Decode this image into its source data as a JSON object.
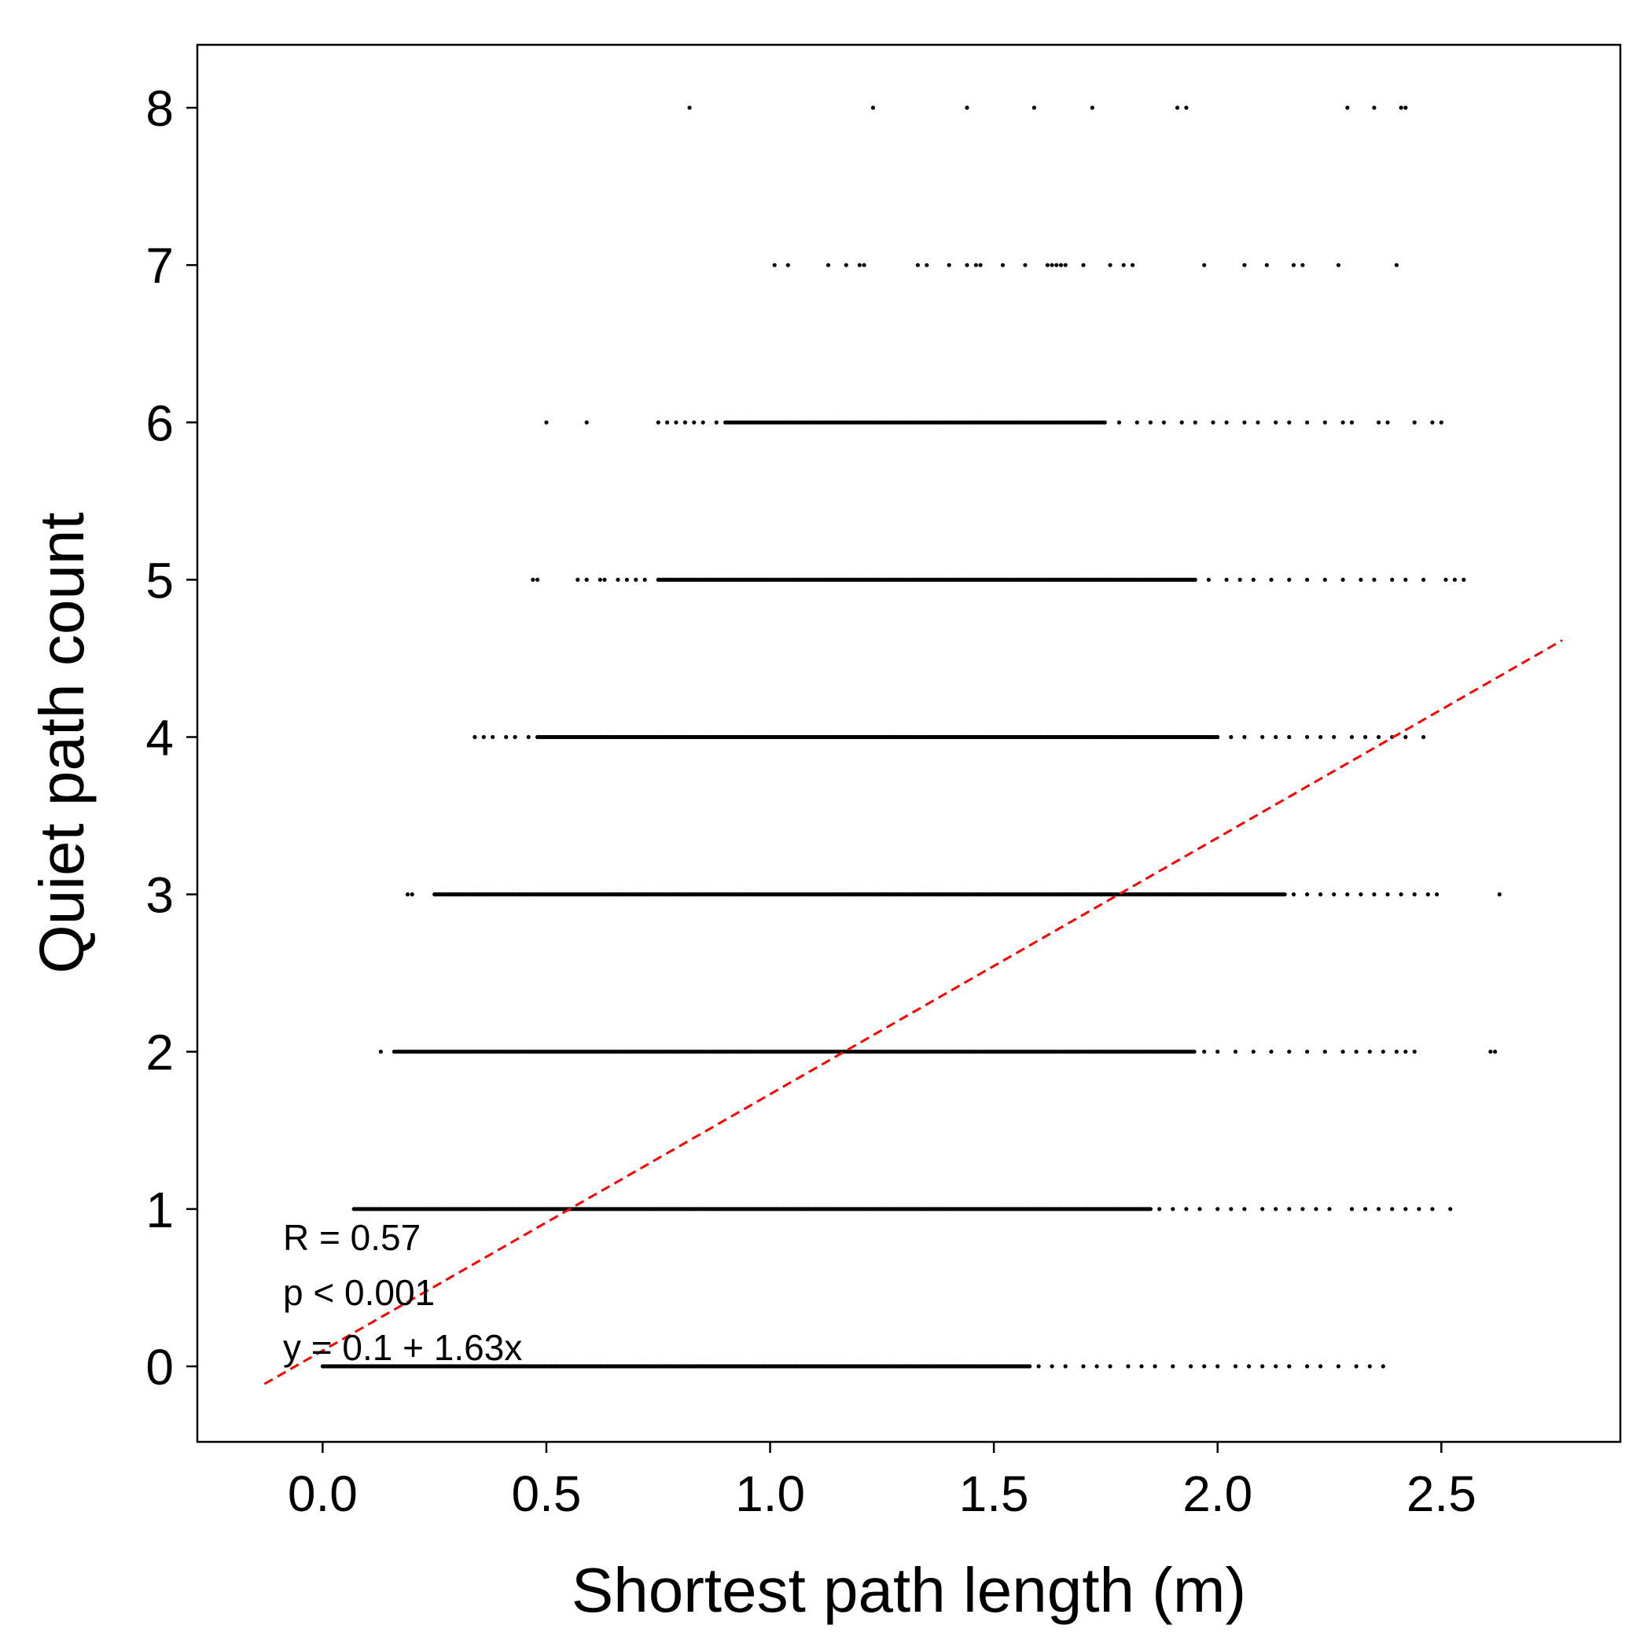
{
  "chart_data": {
    "type": "scatter",
    "title": "",
    "xlabel": "Shortest path length (m)",
    "ylabel": "Quiet path count",
    "xlim": [
      -0.28,
      2.9
    ],
    "ylim": [
      -0.48,
      8.4
    ],
    "grid": false,
    "xticks": [
      {
        "value": 0.0,
        "label": "0.0"
      },
      {
        "value": 0.5,
        "label": "0.5"
      },
      {
        "value": 1.0,
        "label": "1.0"
      },
      {
        "value": 1.5,
        "label": "1.5"
      },
      {
        "value": 2.0,
        "label": "2.0"
      },
      {
        "value": 2.5,
        "label": "2.5"
      }
    ],
    "yticks": [
      {
        "value": 0,
        "label": "0"
      },
      {
        "value": 1,
        "label": "1"
      },
      {
        "value": 2,
        "label": "2"
      },
      {
        "value": 3,
        "label": "3"
      },
      {
        "value": 4,
        "label": "4"
      },
      {
        "value": 5,
        "label": "5"
      },
      {
        "value": 6,
        "label": "6"
      },
      {
        "value": 7,
        "label": "7"
      },
      {
        "value": 8,
        "label": "8"
      }
    ],
    "series": [
      {
        "marker": "point",
        "color": "#000000",
        "rows": [
          {
            "y": 0,
            "dense": [
              0.0,
              1.58
            ],
            "x": [
              1.6,
              1.63,
              1.66,
              1.7,
              1.73,
              1.76,
              1.8,
              1.83,
              1.86,
              1.9,
              1.94,
              1.97,
              2.0,
              2.04,
              2.07,
              2.1,
              2.13,
              2.16,
              2.2,
              2.23,
              2.27,
              2.31,
              2.34,
              2.37
            ]
          },
          {
            "y": 1,
            "dense": [
              0.07,
              1.85
            ],
            "x": [
              1.87,
              1.9,
              1.93,
              1.96,
              2.0,
              2.03,
              2.06,
              2.1,
              2.13,
              2.16,
              2.19,
              2.22,
              2.25,
              2.3,
              2.33,
              2.36,
              2.39,
              2.42,
              2.45,
              2.48,
              2.52
            ]
          },
          {
            "y": 2,
            "dense": [
              0.16,
              1.95
            ],
            "x": [
              0.13,
              1.97,
              2.0,
              2.04,
              2.08,
              2.12,
              2.16,
              2.2,
              2.24,
              2.28,
              2.31,
              2.34,
              2.37,
              2.4,
              2.42,
              2.44,
              2.61,
              2.62
            ]
          },
          {
            "y": 3,
            "dense": [
              0.25,
              2.15
            ],
            "x": [
              0.19,
              0.2,
              2.17,
              2.2,
              2.23,
              2.26,
              2.29,
              2.32,
              2.35,
              2.38,
              2.41,
              2.44,
              2.47,
              2.49,
              2.63
            ]
          },
          {
            "y": 4,
            "dense": [
              0.48,
              2.0
            ],
            "x": [
              0.34,
              0.36,
              0.38,
              0.41,
              0.43,
              0.46,
              2.03,
              2.06,
              2.1,
              2.13,
              2.16,
              2.2,
              2.23,
              2.26,
              2.3,
              2.33,
              2.36,
              2.39,
              2.42,
              2.46
            ]
          },
          {
            "y": 5,
            "dense": [
              0.75,
              1.95
            ],
            "x": [
              0.47,
              0.48,
              0.57,
              0.59,
              0.62,
              0.63,
              0.66,
              0.68,
              0.7,
              0.72,
              1.98,
              2.02,
              2.05,
              2.08,
              2.12,
              2.16,
              2.2,
              2.24,
              2.28,
              2.32,
              2.35,
              2.39,
              2.42,
              2.46,
              2.51,
              2.53,
              2.55
            ]
          },
          {
            "y": 6,
            "dense": [
              0.9,
              1.75
            ],
            "x": [
              0.5,
              0.59,
              0.75,
              0.77,
              0.79,
              0.81,
              0.83,
              0.85,
              0.88,
              1.78,
              1.82,
              1.85,
              1.88,
              1.92,
              1.95,
              1.99,
              2.02,
              2.06,
              2.09,
              2.13,
              2.16,
              2.2,
              2.24,
              2.28,
              2.3,
              2.36,
              2.38,
              2.44,
              2.48,
              2.5
            ]
          },
          {
            "y": 7,
            "x": [
              1.01,
              1.04,
              1.13,
              1.17,
              1.2,
              1.21,
              1.33,
              1.35,
              1.4,
              1.44,
              1.46,
              1.47,
              1.52,
              1.57,
              1.62,
              1.63,
              1.64,
              1.65,
              1.66,
              1.7,
              1.76,
              1.79,
              1.81,
              1.97,
              2.06,
              2.11,
              2.17,
              2.19,
              2.27,
              2.4
            ]
          },
          {
            "y": 8,
            "x": [
              0.82,
              1.23,
              1.44,
              1.59,
              1.72,
              1.91,
              1.93,
              2.29,
              2.35,
              2.41,
              2.42
            ]
          }
        ]
      }
    ],
    "fit_line": {
      "intercept": 0.1,
      "slope": 1.63,
      "x_range": [
        -0.13,
        2.77
      ],
      "color": "#ff0000",
      "style": "dashed"
    },
    "annotations": [
      "R = 0.57",
      "p < 0.001",
      "y = 0.1 + 1.63x"
    ]
  }
}
